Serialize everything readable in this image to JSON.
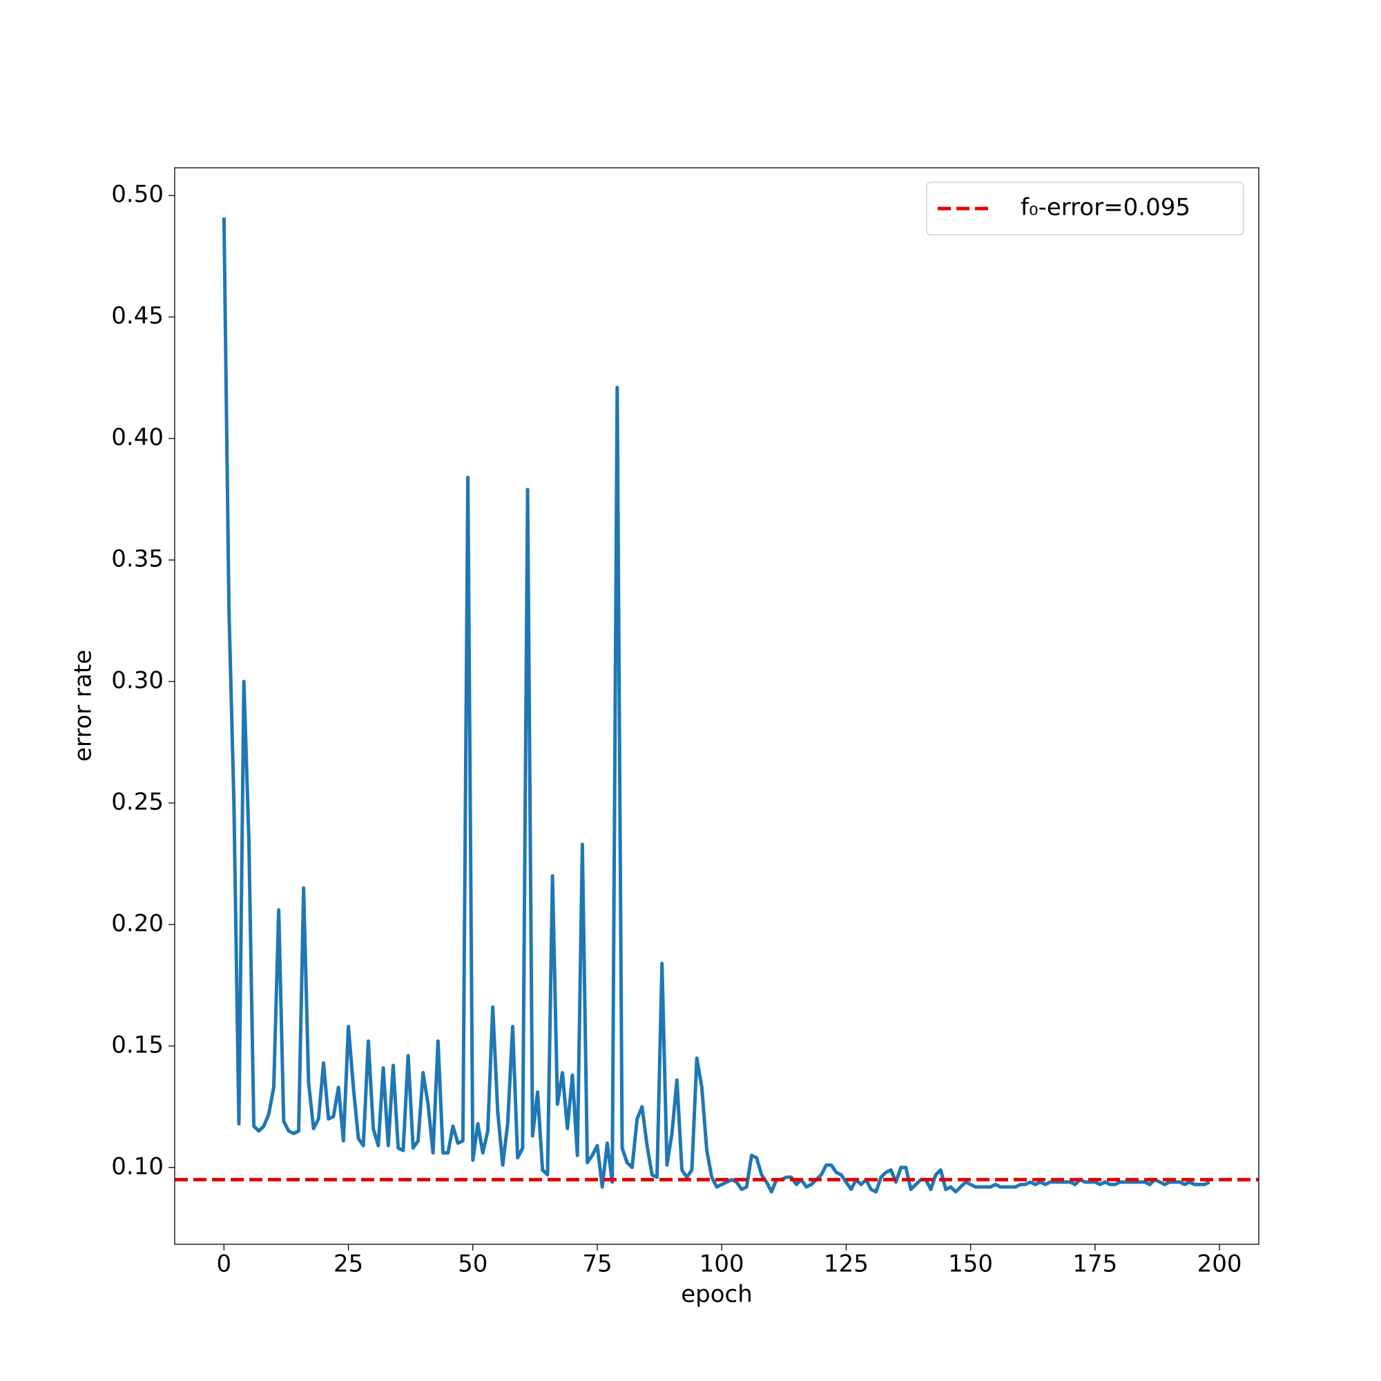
{
  "chart_data": {
    "type": "line",
    "xlabel": "epoch",
    "ylabel": "error rate",
    "x": [
      0,
      1,
      2,
      3,
      4,
      5,
      6,
      7,
      8,
      9,
      10,
      11,
      12,
      13,
      14,
      15,
      16,
      17,
      18,
      19,
      20,
      21,
      22,
      23,
      24,
      25,
      26,
      27,
      28,
      29,
      30,
      31,
      32,
      33,
      34,
      35,
      36,
      37,
      38,
      39,
      40,
      41,
      42,
      43,
      44,
      45,
      46,
      47,
      48,
      49,
      50,
      51,
      52,
      53,
      54,
      55,
      56,
      57,
      58,
      59,
      60,
      61,
      62,
      63,
      64,
      65,
      66,
      67,
      68,
      69,
      70,
      71,
      72,
      73,
      74,
      75,
      76,
      77,
      78,
      79,
      80,
      81,
      82,
      83,
      84,
      85,
      86,
      87,
      88,
      89,
      90,
      91,
      92,
      93,
      94,
      95,
      96,
      97,
      98,
      99,
      100,
      101,
      102,
      103,
      104,
      105,
      106,
      107,
      108,
      109,
      110,
      111,
      112,
      113,
      114,
      115,
      116,
      117,
      118,
      119,
      120,
      121,
      122,
      123,
      124,
      125,
      126,
      127,
      128,
      129,
      130,
      131,
      132,
      133,
      134,
      135,
      136,
      137,
      138,
      139,
      140,
      141,
      142,
      143,
      144,
      145,
      146,
      147,
      148,
      149,
      150,
      151,
      152,
      153,
      154,
      155,
      156,
      157,
      158,
      159,
      160,
      161,
      162,
      163,
      164,
      165,
      166,
      167,
      168,
      169,
      170,
      171,
      172,
      173,
      174,
      175,
      176,
      177,
      178,
      179,
      180,
      181,
      182,
      183,
      184,
      185,
      186,
      187,
      188,
      189,
      190,
      191,
      192,
      193,
      194,
      195,
      196,
      197,
      198
    ],
    "series": [
      {
        "color": "#1f77b4",
        "values": [
          0.491,
          0.33,
          0.25,
          0.118,
          0.3,
          0.235,
          0.117,
          0.115,
          0.117,
          0.122,
          0.133,
          0.206,
          0.119,
          0.115,
          0.114,
          0.115,
          0.215,
          0.135,
          0.116,
          0.12,
          0.143,
          0.12,
          0.121,
          0.133,
          0.111,
          0.158,
          0.133,
          0.112,
          0.109,
          0.152,
          0.116,
          0.109,
          0.141,
          0.109,
          0.142,
          0.108,
          0.107,
          0.146,
          0.108,
          0.111,
          0.139,
          0.126,
          0.106,
          0.152,
          0.106,
          0.106,
          0.117,
          0.11,
          0.111,
          0.384,
          0.103,
          0.118,
          0.106,
          0.115,
          0.166,
          0.123,
          0.101,
          0.118,
          0.158,
          0.104,
          0.108,
          0.379,
          0.113,
          0.131,
          0.099,
          0.097,
          0.22,
          0.126,
          0.139,
          0.116,
          0.138,
          0.105,
          0.233,
          0.102,
          0.105,
          0.109,
          0.092,
          0.11,
          0.094,
          0.421,
          0.108,
          0.102,
          0.1,
          0.12,
          0.125,
          0.109,
          0.097,
          0.096,
          0.184,
          0.101,
          0.114,
          0.136,
          0.099,
          0.096,
          0.099,
          0.145,
          0.133,
          0.107,
          0.096,
          0.092,
          0.093,
          0.094,
          0.095,
          0.094,
          0.091,
          0.092,
          0.105,
          0.104,
          0.097,
          0.094,
          0.09,
          0.095,
          0.095,
          0.096,
          0.096,
          0.093,
          0.095,
          0.092,
          0.093,
          0.095,
          0.097,
          0.101,
          0.101,
          0.098,
          0.097,
          0.094,
          0.091,
          0.095,
          0.093,
          0.095,
          0.091,
          0.09,
          0.096,
          0.098,
          0.099,
          0.094,
          0.1,
          0.1,
          0.091,
          0.093,
          0.095,
          0.095,
          0.091,
          0.097,
          0.099,
          0.091,
          0.092,
          0.09,
          0.092,
          0.094,
          0.093,
          0.092,
          0.092,
          0.092,
          0.092,
          0.093,
          0.092,
          0.092,
          0.092,
          0.092,
          0.093,
          0.093,
          0.094,
          0.093,
          0.094,
          0.093,
          0.094,
          0.094,
          0.094,
          0.094,
          0.094,
          0.093,
          0.095,
          0.094,
          0.094,
          0.094,
          0.093,
          0.094,
          0.093,
          0.093,
          0.094,
          0.094,
          0.094,
          0.094,
          0.094,
          0.094,
          0.093,
          0.095,
          0.094,
          0.093,
          0.094,
          0.094,
          0.094,
          0.093,
          0.094,
          0.093,
          0.093,
          0.093,
          0.094
        ]
      }
    ],
    "hlines": [
      {
        "name": "f₀-error=0.095",
        "value": 0.095,
        "color": "#e50000"
      }
    ],
    "legend": "upper right",
    "xlim": [
      -9.9,
      207.9
    ],
    "xticks": [
      0,
      25,
      50,
      75,
      100,
      125,
      150,
      175,
      200
    ],
    "ylim": [
      0.0684,
      0.5114
    ],
    "yticks": [
      {
        "value": 0.1,
        "label": "0.10"
      },
      0.15,
      {
        "value": 0.2,
        "label": "0.20"
      },
      0.25,
      {
        "value": 0.3,
        "label": "0.30"
      },
      0.35,
      {
        "value": 0.4,
        "label": "0.40"
      },
      0.45,
      {
        "value": 0.5,
        "label": "0.50"
      }
    ]
  }
}
